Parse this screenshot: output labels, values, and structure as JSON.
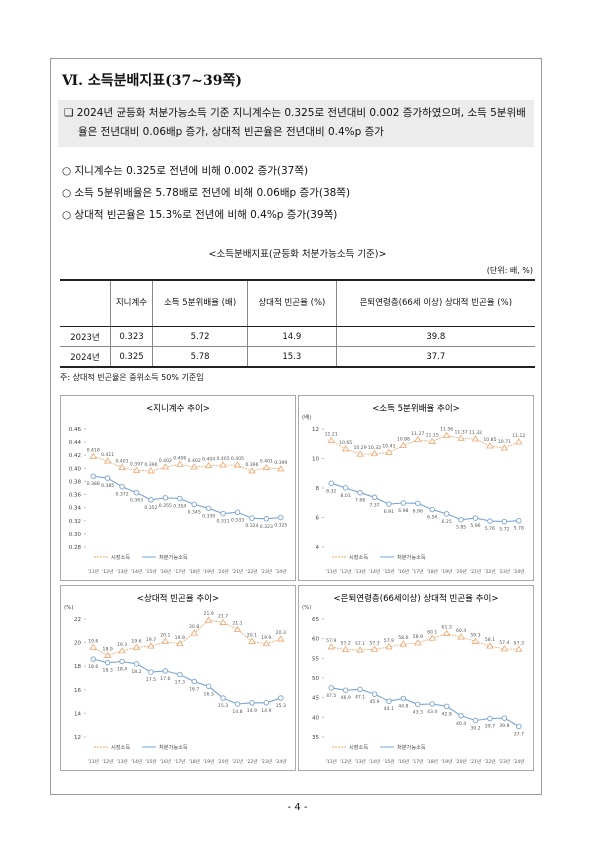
{
  "section_title": "Ⅵ. 소득분배지표(37~39쪽)",
  "summary": "❏ 2024년 균등화 처분가능소득 기준 지니계수는 0.325로 전년대비 0.002 증가하였으며, 소득 5분위배율은 전년대비 0.06배p 증가, 상대적 빈곤율은 전년대비 0.4%p 증가",
  "bullets": [
    "○ 지니계수는 0.325로 전년에 비해 0.002 증가(37쪽)",
    "○ 소득 5분위배율은 5.78배로 전년에 비해 0.06배p 증가(38쪽)",
    "○ 상대적 빈곤율은 15.3%로 전년에 비해 0.4%p 증가(39쪽)"
  ],
  "table": {
    "caption": "<소득분배지표(균등화 처분가능소득 기준)>",
    "unit": "(단위: 배, %)",
    "headers": [
      "지니계수",
      "소득 5분위배율 (배)",
      "상대적 빈곤율 (%)",
      "은퇴연령층(66세 이상) 상대적 빈곤율 (%)"
    ],
    "rows": [
      [
        "2023년",
        0.323,
        5.72,
        14.9,
        39.8
      ],
      [
        "2024년",
        0.325,
        5.78,
        15.3,
        37.7
      ]
    ]
  },
  "note": "주: 상대적 빈곤율은 중위소득 50% 기준임",
  "charts": [
    {
      "type": "line",
      "title": "<지니계수 추이>",
      "categories": [
        "'11년",
        "'12년",
        "'13년",
        "'14년",
        "'15년",
        "'16년",
        "'17년",
        "'18년",
        "'19년",
        "'20년",
        "'21년",
        "'22년",
        "'23년",
        "'24년"
      ],
      "ylim": [
        0.28,
        0.46
      ],
      "yticks": [
        {
          "value": 0.28,
          "label": "0.28"
        },
        {
          "value": 0.3,
          "label": "0.30"
        },
        0.32,
        0.34,
        0.36,
        0.38,
        {
          "value": 0.4,
          "label": "0.40"
        },
        0.42,
        0.44,
        0.46
      ],
      "series": [
        {
          "name": "시장소득",
          "color": "#f0a46a",
          "values": [
            0.418,
            0.411,
            0.401,
            0.397,
            0.396,
            0.402,
            0.406,
            0.402,
            0.404,
            0.405,
            0.405,
            0.396,
            0.401,
            0.399
          ]
        },
        {
          "name": "처분가능소득",
          "color": "#7aa3d4",
          "values": [
            0.388,
            0.385,
            0.372,
            0.363,
            0.352,
            0.355,
            0.354,
            0.345,
            0.339,
            0.331,
            0.333,
            0.324,
            0.323,
            0.325
          ]
        }
      ]
    },
    {
      "type": "line",
      "title": "<소득 5분위배율 추이>",
      "unit": "(배)",
      "categories": [
        "'11년",
        "'12년",
        "'13년",
        "'14년",
        "'15년",
        "'16년",
        "'17년",
        "'18년",
        "'19년",
        "'20년",
        "'21년",
        "'22년",
        "'23년",
        "'24년"
      ],
      "ylim": [
        4,
        12
      ],
      "yticks": [
        4,
        6,
        8,
        10,
        12
      ],
      "series": [
        {
          "name": "시장소득",
          "color": "#f0a46a",
          "values": [
            11.21,
            10.65,
            10.29,
            10.32,
            10.41,
            10.88,
            11.27,
            11.15,
            11.56,
            11.37,
            11.32,
            10.85,
            10.71,
            11.12
          ]
        },
        {
          "name": "처분가능소득",
          "color": "#7aa3d4",
          "values": [
            8.32,
            8.01,
            7.68,
            7.37,
            6.91,
            6.98,
            6.96,
            6.54,
            6.25,
            5.85,
            5.96,
            5.76,
            5.72,
            5.78
          ]
        }
      ]
    },
    {
      "type": "line",
      "title": "<상대적 빈곤율 추이>",
      "unit": "(%)",
      "categories": [
        "'11년",
        "'12년",
        "'13년",
        "'14년",
        "'15년",
        "'16년",
        "'17년",
        "'18년",
        "'19년",
        "'20년",
        "'21년",
        "'22년",
        "'23년",
        "'24년"
      ],
      "ylim": [
        12,
        22
      ],
      "yticks": [
        12,
        14,
        16,
        18,
        20,
        22
      ],
      "series": [
        {
          "name": "시장소득",
          "color": "#f0a46a",
          "values": [
            19.6,
            18.9,
            19.3,
            19.6,
            19.7,
            20.1,
            19.9,
            20.8,
            21.9,
            21.7,
            21.1,
            20.1,
            19.9,
            20.3
          ]
        },
        {
          "name": "처분가능소득",
          "color": "#7aa3d4",
          "values": [
            18.6,
            18.3,
            18.4,
            18.2,
            17.5,
            17.6,
            17.3,
            16.7,
            16.3,
            15.3,
            14.8,
            14.9,
            14.9,
            15.3
          ]
        }
      ]
    },
    {
      "type": "line",
      "title": "<은퇴연령층(66세이상) 상대적 빈곤율 추이>",
      "unit": "(%)",
      "categories": [
        "'11년",
        "'12년",
        "'13년",
        "'14년",
        "'15년",
        "'16년",
        "'17년",
        "'18년",
        "'19년",
        "'20년",
        "'21년",
        "'22년",
        "'23년",
        "'24년"
      ],
      "ylim": [
        35,
        65
      ],
      "yticks": [
        35,
        40,
        45,
        50,
        55,
        60,
        65
      ],
      "series": [
        {
          "name": "시장소득",
          "color": "#f0a46a",
          "values": [
            57.9,
            57.2,
            57.1,
            57.3,
            57.9,
            58.6,
            58.9,
            60.1,
            61.3,
            60.4,
            59.3,
            58.1,
            57.4,
            57.3
          ]
        },
        {
          "name": "처분가능소득",
          "color": "#7aa3d4",
          "values": [
            47.5,
            46.9,
            47.1,
            45.9,
            44.1,
            44.8,
            43.3,
            43.4,
            42.8,
            40.4,
            39.2,
            39.7,
            39.8,
            37.7
          ]
        }
      ]
    }
  ],
  "page_number": "- 4 -"
}
